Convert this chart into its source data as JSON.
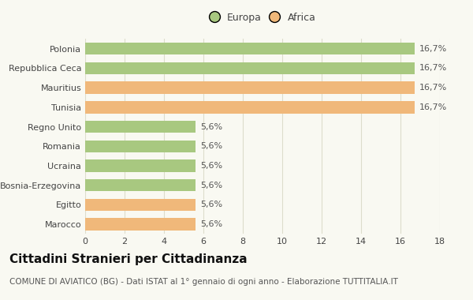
{
  "categories": [
    "Polonia",
    "Repubblica Ceca",
    "Mauritius",
    "Tunisia",
    "Regno Unito",
    "Romania",
    "Ucraina",
    "Bosnia-Erzegovina",
    "Egitto",
    "Marocco"
  ],
  "values": [
    16.7,
    16.7,
    16.7,
    16.7,
    5.6,
    5.6,
    5.6,
    5.6,
    5.6,
    5.6
  ],
  "labels": [
    "16,7%",
    "16,7%",
    "16,7%",
    "16,7%",
    "5,6%",
    "5,6%",
    "5,6%",
    "5,6%",
    "5,6%",
    "5,6%"
  ],
  "colors": [
    "#a8c880",
    "#a8c880",
    "#f0b87a",
    "#f0b87a",
    "#a8c880",
    "#a8c880",
    "#a8c880",
    "#a8c880",
    "#f0b87a",
    "#f0b87a"
  ],
  "legend_labels": [
    "Europa",
    "Africa"
  ],
  "legend_colors": [
    "#a8c880",
    "#f0b87a"
  ],
  "title": "Cittadini Stranieri per Cittadinanza",
  "subtitle": "COMUNE DI AVIATICO (BG) - Dati ISTAT al 1° gennaio di ogni anno - Elaborazione TUTTITALIA.IT",
  "xlim": [
    0,
    18
  ],
  "xticks": [
    0,
    2,
    4,
    6,
    8,
    10,
    12,
    14,
    16,
    18
  ],
  "background_color": "#f9f9f2",
  "grid_color": "#ddddcc",
  "bar_label_fontsize": 8,
  "axis_label_fontsize": 8,
  "title_fontsize": 11,
  "subtitle_fontsize": 7.5
}
